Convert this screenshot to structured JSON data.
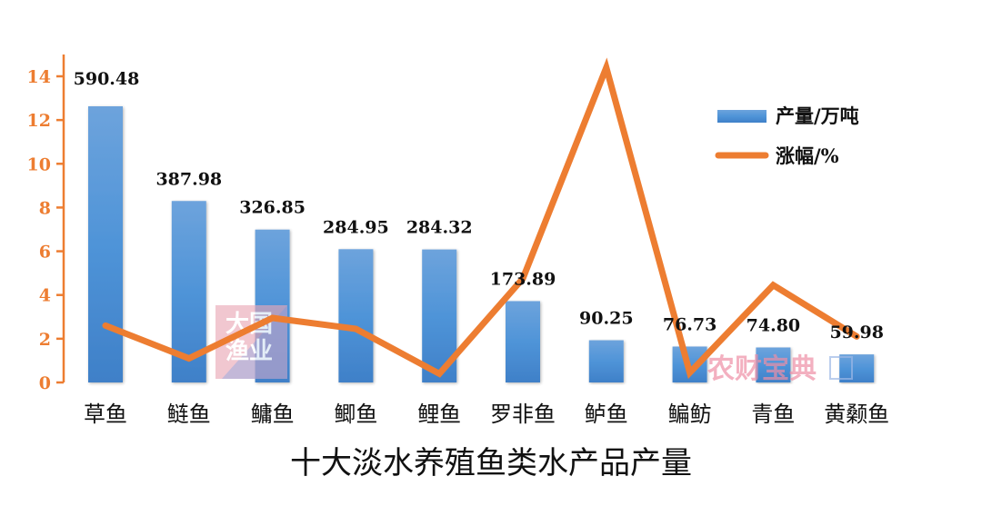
{
  "chart_data": {
    "type": "bar+line",
    "title": "十大淡水养殖鱼类水产品产量",
    "categories": [
      "草鱼",
      "鲢鱼",
      "鳙鱼",
      "鲫鱼",
      "鲤鱼",
      "罗非鱼",
      "鲈鱼",
      "鳊鲂",
      "青鱼",
      "黄颡鱼"
    ],
    "series": [
      {
        "name": "产量/万吨",
        "type": "bar",
        "color": "#4A8ED6",
        "values": [
          590.48,
          387.98,
          326.85,
          284.95,
          284.32,
          173.89,
          90.25,
          76.73,
          74.8,
          59.98
        ],
        "labels": [
          "590.48",
          "387.98",
          "326.85",
          "284.95",
          "284.32",
          "173.89",
          "90.25",
          "76.73",
          "74.80",
          "59.98"
        ]
      },
      {
        "name": "涨幅/%",
        "type": "line",
        "color": "#ED7D31",
        "values": [
          2.6,
          1.1,
          2.95,
          2.45,
          0.4,
          4.75,
          14.4,
          0.45,
          4.45,
          2.1
        ]
      }
    ],
    "y_axis": {
      "ticks": [
        "0",
        "2",
        "4",
        "6",
        "8",
        "10",
        "12",
        "14"
      ],
      "ylim": [
        0,
        14
      ],
      "color": "#ED7D31",
      "applies_to": "涨幅/%"
    },
    "xlabel": "",
    "ylabel": "",
    "grid": false,
    "legend_position": "top-right"
  },
  "watermarks": {
    "left": {
      "line1": "大国",
      "line2": "渔业"
    },
    "right": {
      "text": "农财宝典"
    }
  }
}
